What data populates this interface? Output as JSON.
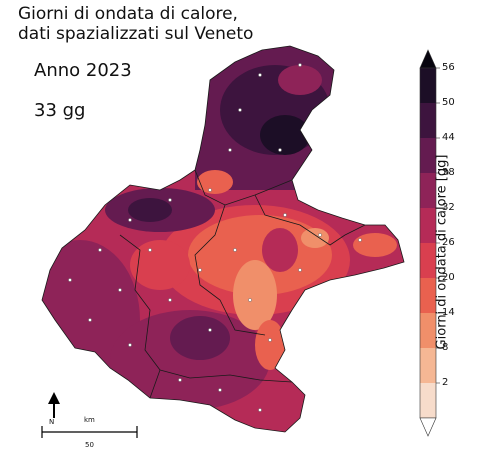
{
  "title_line1": "Giorni di ondata di calore,",
  "title_line2": "dati spazializzati sul Veneto",
  "year_label": "Anno 2023",
  "days_label": "33 gg",
  "colorbar": {
    "label": "Giorni di ondata di calore [gg]",
    "ticks": [
      "2",
      "8",
      "14",
      "20",
      "26",
      "32",
      "38",
      "44",
      "50",
      "56"
    ],
    "colors": [
      "#ffffff",
      "#f7dccb",
      "#f5b794",
      "#f08f6a",
      "#e9614f",
      "#d93f4f",
      "#b52b57",
      "#8e2358",
      "#641b50",
      "#3d143e",
      "#1c0e26",
      "#07050f"
    ]
  },
  "legend": {
    "north": "N",
    "scale_unit": "km",
    "scale_value": "50"
  }
}
